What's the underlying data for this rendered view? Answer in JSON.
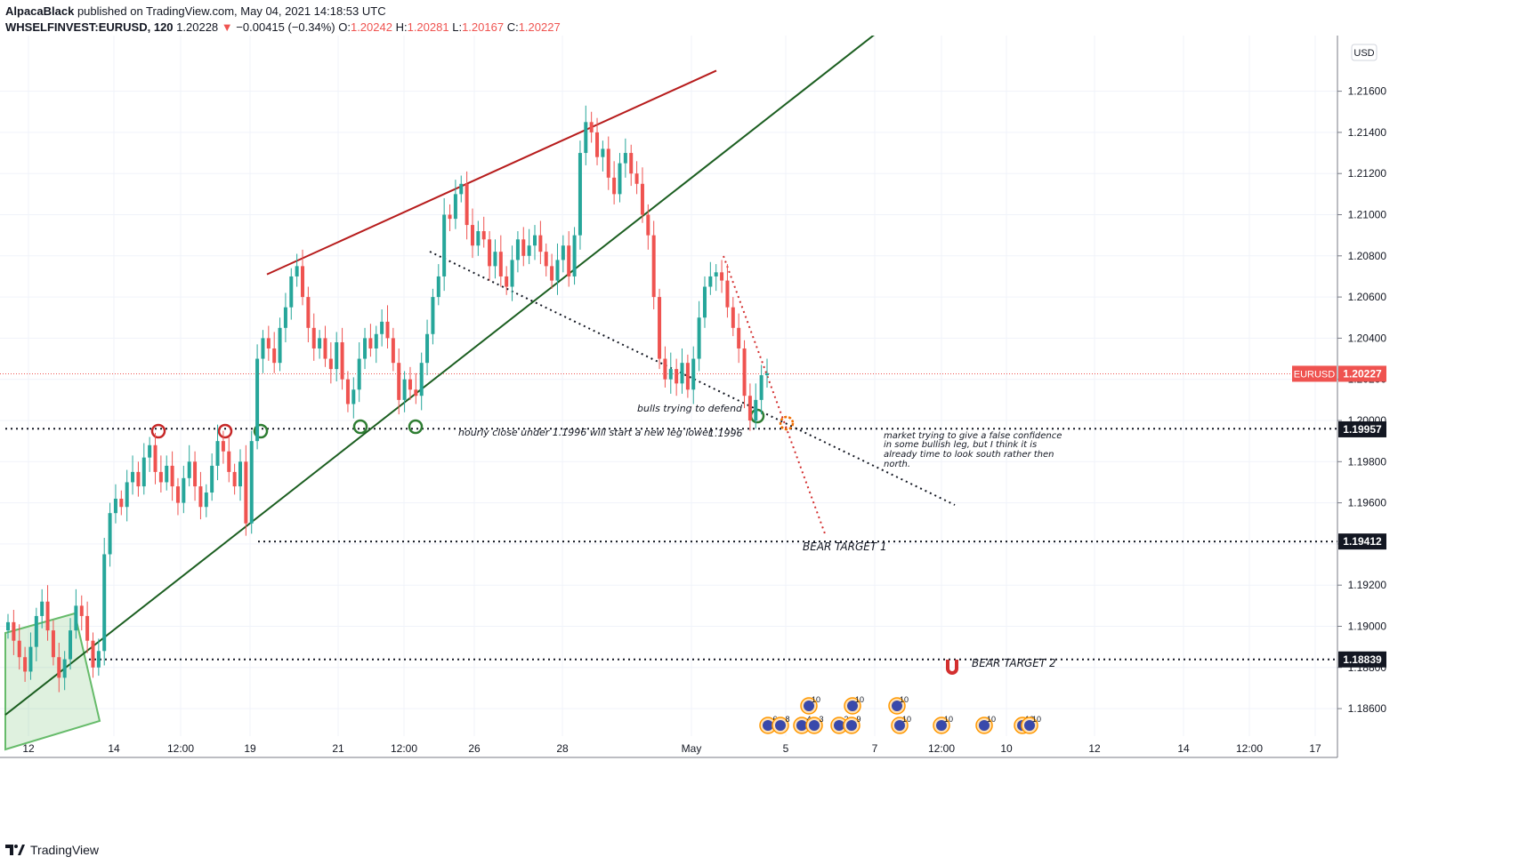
{
  "header": {
    "publisher": "AlpacaBlack",
    "published_text": "published on TradingView.com, May 04, 2021 14:18:53 UTC",
    "symbol": "WHSELFINVEST:EURUSD, 120",
    "last": "1.20228",
    "change": "−0.00415 (−0.34%)",
    "open_label": "O:",
    "open": "1.20242",
    "high_label": "H:",
    "high": "1.20281",
    "low_label": "L:",
    "low": "1.20167",
    "close_label": "C:",
    "close": "1.20227"
  },
  "footer": {
    "brand": "TradingView"
  },
  "chart_data": {
    "type": "candlestick",
    "currency": "USD",
    "price_axis": {
      "min": 1.1846,
      "max": 1.2213,
      "ticks": [
        1.186,
        1.188,
        1.19,
        1.192,
        1.194,
        1.196,
        1.198,
        1.2,
        1.202,
        1.204,
        1.206,
        1.208,
        1.21,
        1.212,
        1.214,
        1.216
      ],
      "tick_labels": [
        "1.18600",
        "1.18800",
        "1.19000",
        "1.19200",
        "1.19400",
        "1.19600",
        "1.19800",
        "1.20000",
        "1.20200",
        "1.20400",
        "1.20600",
        "1.20800",
        "1.21000",
        "1.21200",
        "1.21400",
        "1.21600"
      ]
    },
    "time_axis_labels": [
      "12",
      "14",
      "12:00",
      "19",
      "21",
      "12:00",
      "26",
      "28",
      "May",
      "5",
      "7",
      "12:00",
      "10",
      "12",
      "14",
      "12:00",
      "17"
    ],
    "price_tags": [
      {
        "label": "EURUSD",
        "value": "1.20227",
        "price": 1.20227,
        "color": "#ef5350"
      },
      {
        "label": "",
        "value": "1.19957",
        "price": 1.19957,
        "color": "#131722"
      },
      {
        "label": "",
        "value": "1.19412",
        "price": 1.19412,
        "color": "#131722"
      },
      {
        "label": "",
        "value": "1.18839",
        "price": 1.18839,
        "color": "#131722"
      }
    ],
    "candles_close_path": [
      1.1902,
      1.1893,
      1.1885,
      1.1878,
      1.189,
      1.1905,
      1.1912,
      1.1898,
      1.1885,
      1.1875,
      1.1884,
      1.1898,
      1.191,
      1.1905,
      1.1893,
      1.188,
      1.1888,
      1.1935,
      1.1955,
      1.1962,
      1.1958,
      1.197,
      1.1975,
      1.1968,
      1.1982,
      1.1988,
      1.1975,
      1.197,
      1.1978,
      1.1968,
      1.196,
      1.1972,
      1.198,
      1.1968,
      1.1958,
      1.1965,
      1.1978,
      1.199,
      1.1985,
      1.1975,
      1.1968,
      1.198,
      1.195,
      1.199,
      1.203,
      1.204,
      1.2035,
      1.2028,
      1.2045,
      1.2055,
      1.207,
      1.2075,
      1.206,
      1.2045,
      1.2035,
      1.204,
      1.203,
      1.2025,
      1.2038,
      1.202,
      1.2008,
      1.2015,
      1.203,
      1.204,
      1.2035,
      1.2042,
      1.2048,
      1.204,
      1.2028,
      1.201,
      1.202,
      1.2015,
      1.2012,
      1.2028,
      1.2042,
      1.206,
      1.207,
      1.21,
      1.2098,
      1.211,
      1.2115,
      1.2095,
      1.2085,
      1.2092,
      1.2088,
      1.2075,
      1.2082,
      1.207,
      1.2065,
      1.2078,
      1.2088,
      1.208,
      1.2085,
      1.209,
      1.2082,
      1.2075,
      1.2068,
      1.2078,
      1.2085,
      1.207,
      1.209,
      1.213,
      1.2145,
      1.214,
      1.2128,
      1.2132,
      1.2118,
      1.211,
      1.2125,
      1.213,
      1.212,
      1.2115,
      1.21,
      1.209,
      1.206,
      1.203,
      1.202,
      1.2025,
      1.2018,
      1.2028,
      1.2015,
      1.203,
      1.205,
      1.2065,
      1.207,
      1.2072,
      1.2068,
      1.2055,
      1.2045,
      1.2035,
      1.2012,
      1.2,
      1.201,
      1.2022,
      1.2023
    ],
    "trendlines": [
      {
        "name": "resistance",
        "color": "#b71c1c",
        "from": [
          300,
          1.2071
        ],
        "to": [
          805,
          1.217
        ]
      },
      {
        "name": "support",
        "color": "#1b5e20",
        "from": [
          6,
          1.1857
        ],
        "to": [
          1058,
          1.2213
        ]
      }
    ],
    "horizontal_levels": [
      1.1996,
      1.19412,
      1.18839
    ],
    "annotations": [
      {
        "text": "bulls trying to defend",
        "price": 1.2003
      },
      {
        "text": "hourly close under 1.1996 will start a new leg lower",
        "price": 1.1991
      },
      {
        "text": "1.1996",
        "price": 1.1991
      },
      {
        "text": "market trying to give a false confidence",
        "price": 1.1991
      },
      {
        "text": "in some bullish leg, but I think it is",
        "price": 1.1986
      },
      {
        "text": "already time to look south rather then",
        "price": 1.1981
      },
      {
        "text": "north.",
        "price": 1.1976
      },
      {
        "text": "BEAR TARGET 1",
        "price": 1.1936
      },
      {
        "text": "BEAR TARGET 2",
        "price": 1.1879
      }
    ],
    "event_markers": [
      "6",
      "8",
      "4",
      "3",
      "2",
      "9",
      "10",
      "10",
      "10",
      "10",
      "10",
      "10",
      "10",
      "10"
    ]
  }
}
